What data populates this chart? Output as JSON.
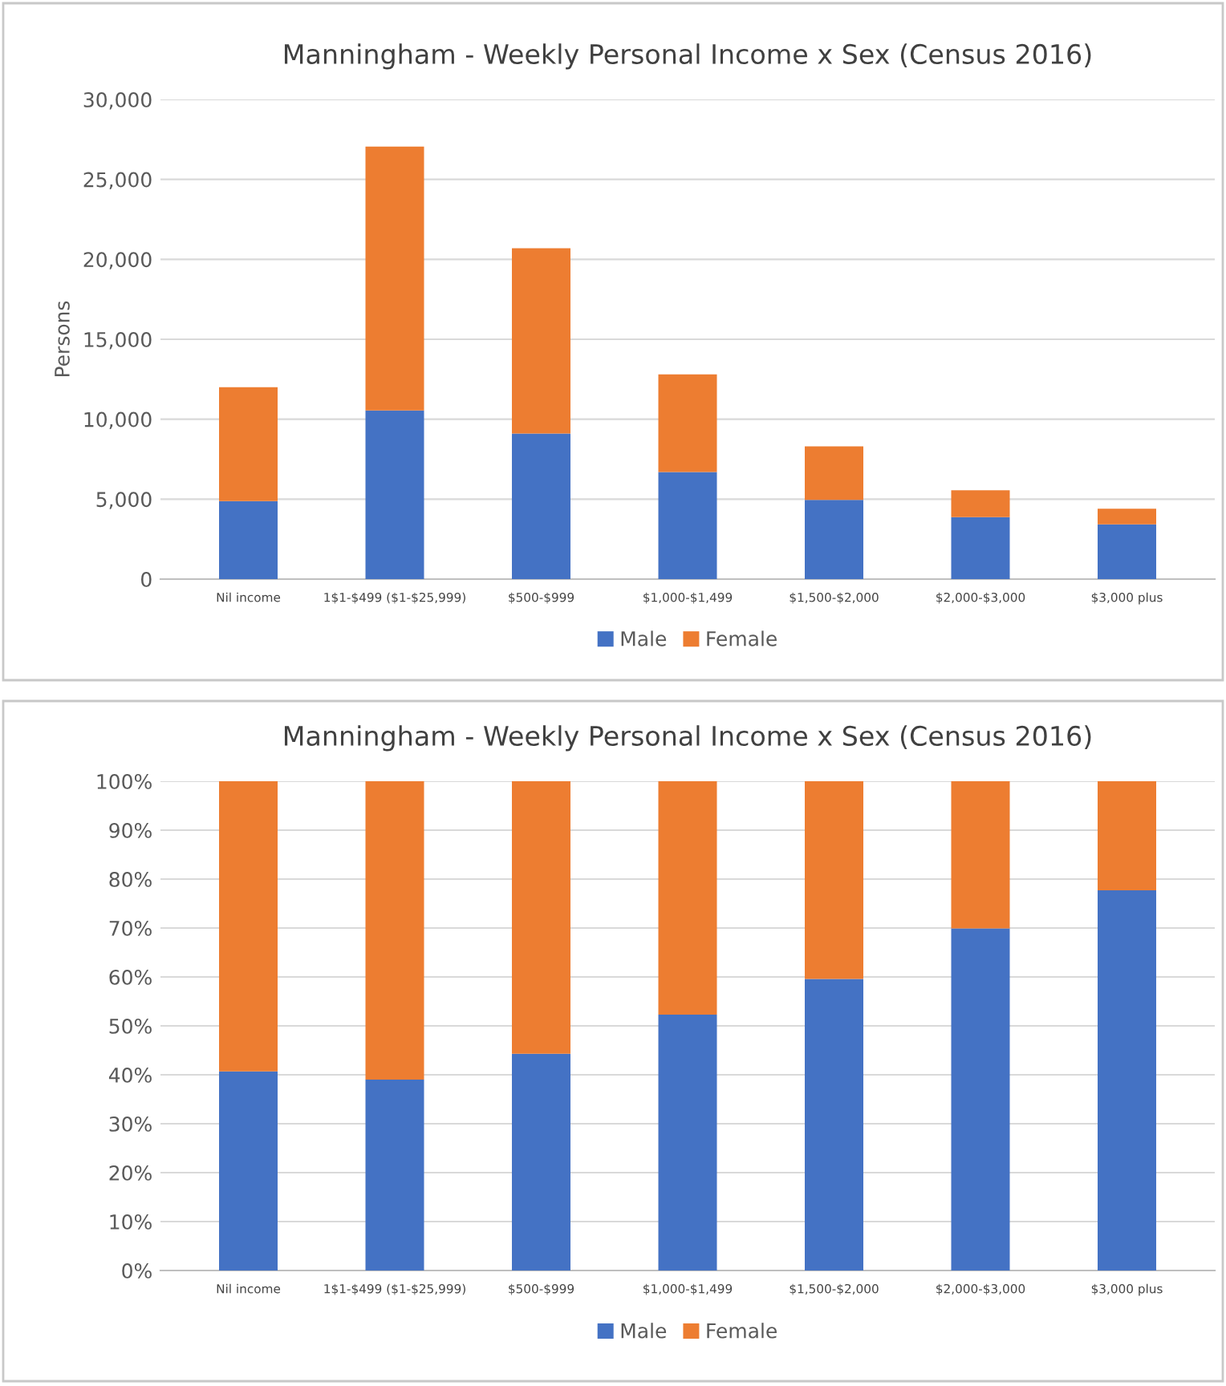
{
  "chart_data": [
    {
      "type": "bar",
      "title": "Manningham - Weekly Personal Income x Sex (Census 2016)",
      "ylabel": "Persons",
      "stacked": true,
      "categories": [
        "Nil income",
        "1$1-$499 ($1-$25,999)",
        "$500-$999",
        "$1,000-$1,499",
        "$1,500-$2,000",
        "$2,000-$3,000",
        "$3,000 plus"
      ],
      "series": [
        {
          "name": "Male",
          "color": "#4472c4",
          "values": [
            4880,
            10550,
            9100,
            6700,
            4950,
            3880,
            3420
          ]
        },
        {
          "name": "Female",
          "color": "#ed7d31",
          "values": [
            7120,
            16500,
            11600,
            6100,
            3350,
            1670,
            980
          ]
        }
      ],
      "ylim": [
        0,
        30000
      ],
      "yticks": [
        0,
        {
          "value": 5000,
          "label": "5,000"
        },
        {
          "value": 10000,
          "label": "10,000"
        },
        {
          "value": 15000,
          "label": "15,000"
        },
        {
          "value": 20000,
          "label": "20,000"
        },
        {
          "value": 25000,
          "label": "25,000"
        },
        {
          "value": 30000,
          "label": "30,000"
        }
      ],
      "grid": "y",
      "legend": "bottom"
    },
    {
      "type": "bar",
      "title": "Manningham - Weekly Personal Income x Sex (Census 2016)",
      "stacked": true,
      "categories": [
        "Nil income",
        "1$1-$499 ($1-$25,999)",
        "$500-$999",
        "$1,000-$1,499",
        "$1,500-$2,000",
        "$2,000-$3,000",
        "$3,000 plus"
      ],
      "series": [
        {
          "name": "Male",
          "color": "#4472c4",
          "values": [
            40.7,
            39.0,
            44.3,
            52.3,
            59.6,
            69.9,
            77.7
          ]
        },
        {
          "name": "Female",
          "color": "#ed7d31",
          "values": [
            59.3,
            61.0,
            55.7,
            47.7,
            40.4,
            30.1,
            22.3
          ]
        }
      ],
      "ylim": [
        0,
        100
      ],
      "yticks": [
        {
          "value": 0,
          "label": "0%"
        },
        {
          "value": 10,
          "label": "10%"
        },
        {
          "value": 20,
          "label": "20%"
        },
        {
          "value": 30,
          "label": "30%"
        },
        {
          "value": 40,
          "label": "40%"
        },
        {
          "value": 50,
          "label": "50%"
        },
        {
          "value": 60,
          "label": "60%"
        },
        {
          "value": 70,
          "label": "70%"
        },
        {
          "value": 80,
          "label": "80%"
        },
        {
          "value": 90,
          "label": "90%"
        },
        {
          "value": 100,
          "label": "100%"
        }
      ],
      "grid": "y",
      "legend": "bottom"
    }
  ]
}
